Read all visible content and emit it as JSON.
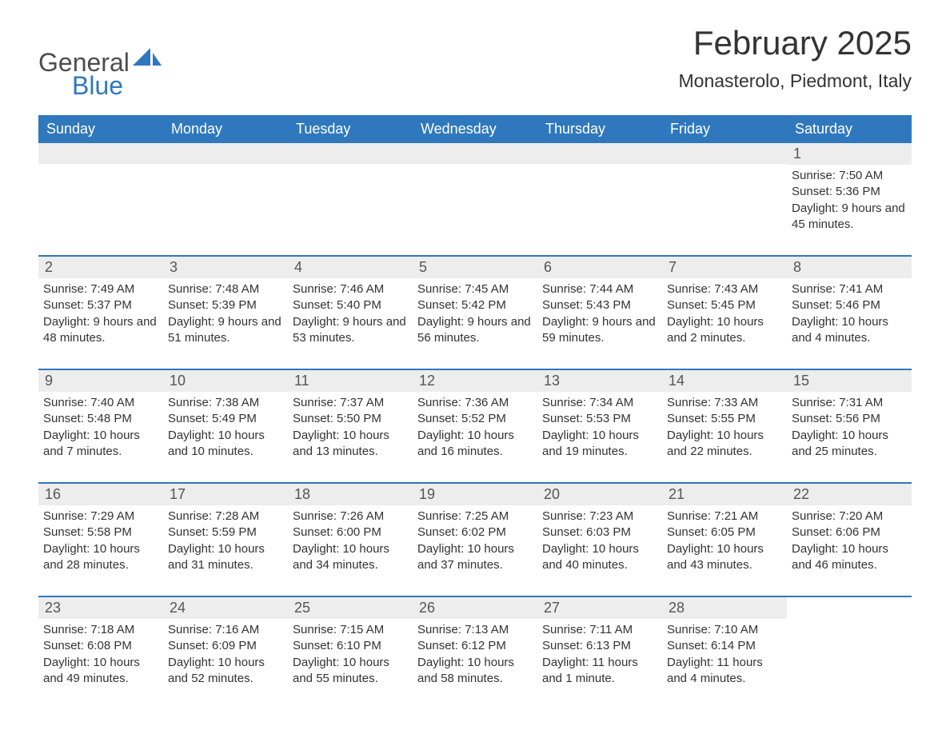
{
  "brand": {
    "word1": "General",
    "word2": "Blue",
    "text_color": "#4d4d4d",
    "accent_color": "#2f78bd"
  },
  "title": "February 2025",
  "location": "Monasterolo, Piedmont, Italy",
  "colors": {
    "header_bg": "#2f78bd",
    "header_text": "#ffffff",
    "band_bg": "#ededed",
    "body_text": "#333333",
    "rule": "#2f78bd"
  },
  "day_headers": [
    "Sunday",
    "Monday",
    "Tuesday",
    "Wednesday",
    "Thursday",
    "Friday",
    "Saturday"
  ],
  "weeks": [
    [
      null,
      null,
      null,
      null,
      null,
      null,
      {
        "n": "1",
        "sunrise": "Sunrise: 7:50 AM",
        "sunset": "Sunset: 5:36 PM",
        "daylight": "Daylight: 9 hours and 45 minutes."
      }
    ],
    [
      {
        "n": "2",
        "sunrise": "Sunrise: 7:49 AM",
        "sunset": "Sunset: 5:37 PM",
        "daylight": "Daylight: 9 hours and 48 minutes."
      },
      {
        "n": "3",
        "sunrise": "Sunrise: 7:48 AM",
        "sunset": "Sunset: 5:39 PM",
        "daylight": "Daylight: 9 hours and 51 minutes."
      },
      {
        "n": "4",
        "sunrise": "Sunrise: 7:46 AM",
        "sunset": "Sunset: 5:40 PM",
        "daylight": "Daylight: 9 hours and 53 minutes."
      },
      {
        "n": "5",
        "sunrise": "Sunrise: 7:45 AM",
        "sunset": "Sunset: 5:42 PM",
        "daylight": "Daylight: 9 hours and 56 minutes."
      },
      {
        "n": "6",
        "sunrise": "Sunrise: 7:44 AM",
        "sunset": "Sunset: 5:43 PM",
        "daylight": "Daylight: 9 hours and 59 minutes."
      },
      {
        "n": "7",
        "sunrise": "Sunrise: 7:43 AM",
        "sunset": "Sunset: 5:45 PM",
        "daylight": "Daylight: 10 hours and 2 minutes."
      },
      {
        "n": "8",
        "sunrise": "Sunrise: 7:41 AM",
        "sunset": "Sunset: 5:46 PM",
        "daylight": "Daylight: 10 hours and 4 minutes."
      }
    ],
    [
      {
        "n": "9",
        "sunrise": "Sunrise: 7:40 AM",
        "sunset": "Sunset: 5:48 PM",
        "daylight": "Daylight: 10 hours and 7 minutes."
      },
      {
        "n": "10",
        "sunrise": "Sunrise: 7:38 AM",
        "sunset": "Sunset: 5:49 PM",
        "daylight": "Daylight: 10 hours and 10 minutes."
      },
      {
        "n": "11",
        "sunrise": "Sunrise: 7:37 AM",
        "sunset": "Sunset: 5:50 PM",
        "daylight": "Daylight: 10 hours and 13 minutes."
      },
      {
        "n": "12",
        "sunrise": "Sunrise: 7:36 AM",
        "sunset": "Sunset: 5:52 PM",
        "daylight": "Daylight: 10 hours and 16 minutes."
      },
      {
        "n": "13",
        "sunrise": "Sunrise: 7:34 AM",
        "sunset": "Sunset: 5:53 PM",
        "daylight": "Daylight: 10 hours and 19 minutes."
      },
      {
        "n": "14",
        "sunrise": "Sunrise: 7:33 AM",
        "sunset": "Sunset: 5:55 PM",
        "daylight": "Daylight: 10 hours and 22 minutes."
      },
      {
        "n": "15",
        "sunrise": "Sunrise: 7:31 AM",
        "sunset": "Sunset: 5:56 PM",
        "daylight": "Daylight: 10 hours and 25 minutes."
      }
    ],
    [
      {
        "n": "16",
        "sunrise": "Sunrise: 7:29 AM",
        "sunset": "Sunset: 5:58 PM",
        "daylight": "Daylight: 10 hours and 28 minutes."
      },
      {
        "n": "17",
        "sunrise": "Sunrise: 7:28 AM",
        "sunset": "Sunset: 5:59 PM",
        "daylight": "Daylight: 10 hours and 31 minutes."
      },
      {
        "n": "18",
        "sunrise": "Sunrise: 7:26 AM",
        "sunset": "Sunset: 6:00 PM",
        "daylight": "Daylight: 10 hours and 34 minutes."
      },
      {
        "n": "19",
        "sunrise": "Sunrise: 7:25 AM",
        "sunset": "Sunset: 6:02 PM",
        "daylight": "Daylight: 10 hours and 37 minutes."
      },
      {
        "n": "20",
        "sunrise": "Sunrise: 7:23 AM",
        "sunset": "Sunset: 6:03 PM",
        "daylight": "Daylight: 10 hours and 40 minutes."
      },
      {
        "n": "21",
        "sunrise": "Sunrise: 7:21 AM",
        "sunset": "Sunset: 6:05 PM",
        "daylight": "Daylight: 10 hours and 43 minutes."
      },
      {
        "n": "22",
        "sunrise": "Sunrise: 7:20 AM",
        "sunset": "Sunset: 6:06 PM",
        "daylight": "Daylight: 10 hours and 46 minutes."
      }
    ],
    [
      {
        "n": "23",
        "sunrise": "Sunrise: 7:18 AM",
        "sunset": "Sunset: 6:08 PM",
        "daylight": "Daylight: 10 hours and 49 minutes."
      },
      {
        "n": "24",
        "sunrise": "Sunrise: 7:16 AM",
        "sunset": "Sunset: 6:09 PM",
        "daylight": "Daylight: 10 hours and 52 minutes."
      },
      {
        "n": "25",
        "sunrise": "Sunrise: 7:15 AM",
        "sunset": "Sunset: 6:10 PM",
        "daylight": "Daylight: 10 hours and 55 minutes."
      },
      {
        "n": "26",
        "sunrise": "Sunrise: 7:13 AM",
        "sunset": "Sunset: 6:12 PM",
        "daylight": "Daylight: 10 hours and 58 minutes."
      },
      {
        "n": "27",
        "sunrise": "Sunrise: 7:11 AM",
        "sunset": "Sunset: 6:13 PM",
        "daylight": "Daylight: 11 hours and 1 minute."
      },
      {
        "n": "28",
        "sunrise": "Sunrise: 7:10 AM",
        "sunset": "Sunset: 6:14 PM",
        "daylight": "Daylight: 11 hours and 4 minutes."
      },
      null
    ]
  ]
}
